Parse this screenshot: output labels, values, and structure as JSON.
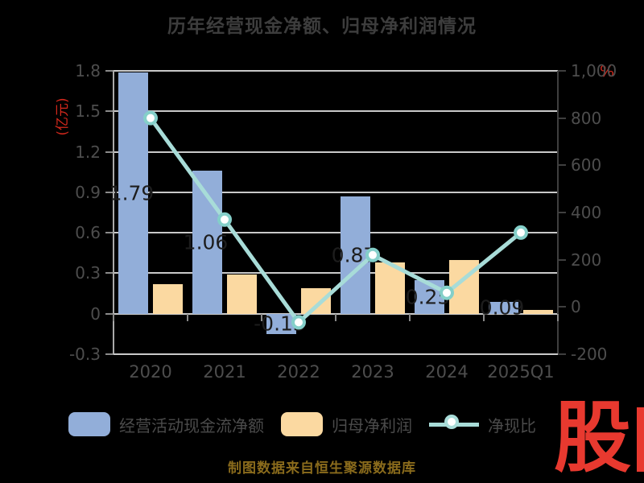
{
  "title": "历年经营现金净额、归母净利润情况",
  "caption": "制图数据来自恒生聚源数据库",
  "watermark": "股",
  "axes": {
    "left_unit": "(亿元)",
    "right_unit": "%"
  },
  "legend": [
    {
      "label": "经营活动现金流净额",
      "type": "bar",
      "color": "#92aed9"
    },
    {
      "label": "归母净利润",
      "type": "bar",
      "color": "#fbd9a1"
    },
    {
      "label": "净现比",
      "type": "line",
      "color": "#a8dcd8"
    }
  ],
  "chart_data": {
    "type": "combo",
    "categories": [
      "2020",
      "2021",
      "2022",
      "2023",
      "2024",
      "2025Q1"
    ],
    "series": [
      {
        "name": "经营活动现金流净额",
        "type": "bar",
        "axis": "left",
        "color": "#92aed9",
        "values": [
          1.79,
          1.06,
          -0.15,
          0.87,
          0.25,
          0.09
        ],
        "labels": [
          "1.79",
          "1.06",
          "-0.15",
          "0.87",
          "0.25",
          "0.09"
        ]
      },
      {
        "name": "归母净利润",
        "type": "bar",
        "axis": "left",
        "color": "#fbd9a1",
        "values": [
          0.22,
          0.29,
          0.19,
          0.38,
          0.4,
          0.03
        ]
      },
      {
        "name": "净现比",
        "type": "line",
        "axis": "right",
        "color": "#a8dcd8",
        "marker_fill": "#ffffff",
        "marker_stroke": "#84cfc9",
        "values": [
          800,
          370,
          -65,
          220,
          60,
          315
        ]
      }
    ],
    "left_axis": {
      "label": "(亿元)",
      "min": -0.3,
      "max": 1.8,
      "tick_step": 0.3
    },
    "right_axis": {
      "label": "%",
      "min": -200,
      "max": 1000,
      "tick_step": 200
    },
    "grid": true,
    "legend_position": "bottom",
    "title": "历年经营现金净额、归母净利润情况"
  }
}
